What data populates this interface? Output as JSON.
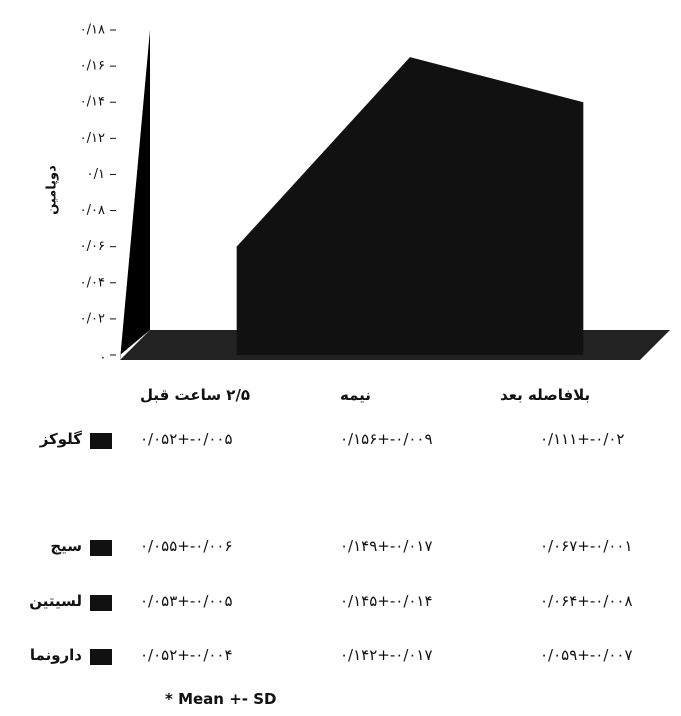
{
  "chart_data": {
    "type": "area",
    "ylabel": "دوپامین",
    "categories": [
      "۲/۵ ساعت قبل",
      "نیمه",
      "بلافاصله بعد"
    ],
    "values": [
      0.06,
      0.165,
      0.14
    ],
    "color": "#111111",
    "ylim": [
      0,
      0.18
    ],
    "yticks": [
      {
        "value": 0,
        "label": "."
      },
      {
        "value": 0.02,
        "label": "۰/۰۲"
      },
      {
        "value": 0.04,
        "label": "۰/۰۴"
      },
      {
        "value": 0.06,
        "label": "۰/۰۶"
      },
      {
        "value": 0.08,
        "label": "۰/۰۸"
      },
      {
        "value": 0.1,
        "label": "۰/۱"
      },
      {
        "value": 0.12,
        "label": "۰/۱۲"
      },
      {
        "value": 0.14,
        "label": "۰/۱۴"
      },
      {
        "value": 0.16,
        "label": "۰/۱۶"
      },
      {
        "value": 0.18,
        "label": "۰/۱۸"
      }
    ]
  },
  "table": {
    "rows": [
      {
        "name": "گلوکز",
        "cells": [
          "۰/۰۵۲+-۰/۰۰۵",
          "۰/۱۵۶+-۰/۰۰۹",
          "۰/۱۱۱+-۰/۰۲"
        ]
      },
      {
        "name": "سیج",
        "cells": [
          "۰/۰۵۵+-۰/۰۰۶",
          "۰/۱۴۹+-۰/۰۱۷",
          "۰/۰۶۷+-۰/۰۰۱"
        ]
      },
      {
        "name": "لسیتین",
        "cells": [
          "۰/۰۵۳+-۰/۰۰۵",
          "۰/۱۴۵+-۰/۰۱۴",
          "۰/۰۶۴+-۰/۰۰۸"
        ]
      },
      {
        "name": "دارونما",
        "cells": [
          "۰/۰۵۲+-۰/۰۰۴",
          "۰/۱۴۲+-۰/۰۱۷",
          "۰/۰۵۹+-۰/۰۰۷"
        ]
      }
    ],
    "footnote": "* Mean +- SD"
  }
}
